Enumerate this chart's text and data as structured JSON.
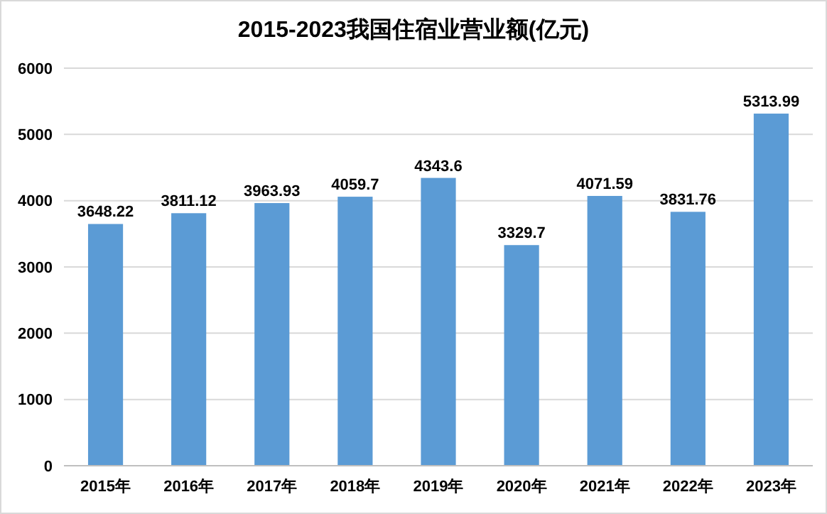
{
  "chart_data": {
    "type": "bar",
    "title": "2015-2023我国住宿业营业额(亿元)",
    "categories": [
      "2015年",
      "2016年",
      "2017年",
      "2018年",
      "2019年",
      "2020年",
      "2021年",
      "2022年",
      "2023年"
    ],
    "values": [
      3648.22,
      3811.12,
      3963.93,
      4059.7,
      4343.6,
      3329.7,
      4071.59,
      3831.76,
      5313.99
    ],
    "color": "#5b9bd5",
    "ylim": [
      0,
      6000
    ],
    "yticks": [
      0,
      1000,
      2000,
      3000,
      4000,
      5000,
      6000
    ],
    "grid": "y",
    "data_labels": true
  }
}
